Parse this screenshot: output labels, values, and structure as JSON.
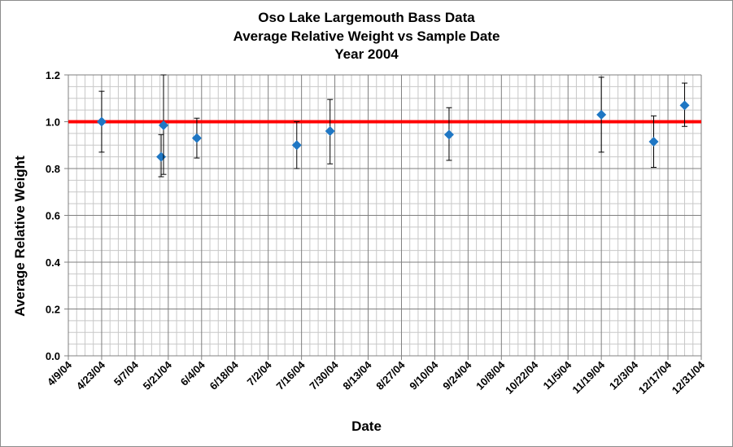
{
  "chart_data": {
    "type": "scatter",
    "title_lines": [
      "Oso Lake Largemouth Bass Data",
      "Average Relative Weight vs Sample Date",
      "Year 2004"
    ],
    "xlabel": "Date",
    "ylabel": "Average Relative Weight",
    "x_axis_type": "date",
    "xlim": [
      "2004-04-09",
      "2004-12-31"
    ],
    "x_tick_labels": [
      "4/9/04",
      "4/23/04",
      "5/7/04",
      "5/21/04",
      "6/4/04",
      "6/18/04",
      "7/2/04",
      "7/16/04",
      "7/30/04",
      "8/13/04",
      "8/27/04",
      "9/10/04",
      "9/24/04",
      "10/8/04",
      "10/22/04",
      "11/5/04",
      "11/19/04",
      "12/3/04",
      "12/17/04",
      "12/31/04"
    ],
    "x_tick_dates": [
      "2004-04-09",
      "2004-04-23",
      "2004-05-07",
      "2004-05-21",
      "2004-06-04",
      "2004-06-18",
      "2004-07-02",
      "2004-07-16",
      "2004-07-30",
      "2004-08-13",
      "2004-08-27",
      "2004-09-10",
      "2004-09-24",
      "2004-10-08",
      "2004-10-22",
      "2004-11-05",
      "2004-11-19",
      "2004-12-03",
      "2004-12-17",
      "2004-12-31"
    ],
    "ylim": [
      0,
      1.2
    ],
    "y_tick_labels": [
      "0.0",
      "0.2",
      "0.4",
      "0.6",
      "0.8",
      "1.0",
      "1.2"
    ],
    "y_tick_values": [
      0,
      0.2,
      0.4,
      0.6,
      0.8,
      1.0,
      1.2
    ],
    "grid": true,
    "marker_color": "#1f77c4",
    "reference_line": {
      "y": 1.0,
      "color": "#ff0000"
    },
    "points": [
      {
        "x": "2004-04-23",
        "y": 1.0,
        "err_low": 0.87,
        "err_high": 1.13
      },
      {
        "x": "2004-05-18",
        "y": 0.85,
        "err_low": 0.765,
        "err_high": 0.945
      },
      {
        "x": "2004-05-19",
        "y": 0.985,
        "err_low": 0.775,
        "err_high": 1.2
      },
      {
        "x": "2004-06-02",
        "y": 0.93,
        "err_low": 0.845,
        "err_high": 1.015
      },
      {
        "x": "2004-07-14",
        "y": 0.9,
        "err_low": 0.8,
        "err_high": 1.0
      },
      {
        "x": "2004-07-28",
        "y": 0.96,
        "err_low": 0.82,
        "err_high": 1.095
      },
      {
        "x": "2004-09-16",
        "y": 0.945,
        "err_low": 0.835,
        "err_high": 1.06
      },
      {
        "x": "2004-11-19",
        "y": 1.03,
        "err_low": 0.87,
        "err_high": 1.19
      },
      {
        "x": "2004-12-11",
        "y": 0.915,
        "err_low": 0.805,
        "err_high": 1.025
      },
      {
        "x": "2004-12-24",
        "y": 1.07,
        "err_low": 0.98,
        "err_high": 1.165
      }
    ]
  }
}
